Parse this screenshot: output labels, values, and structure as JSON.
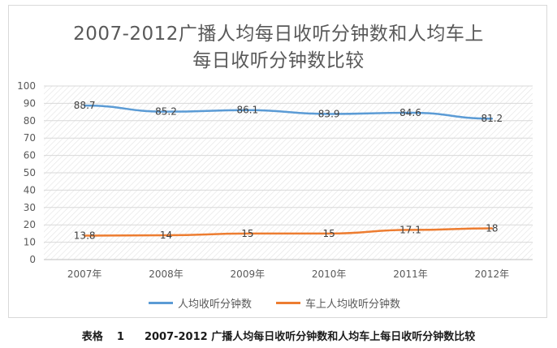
{
  "chart_data": {
    "type": "line",
    "title_line1": "2007-2012广播人均每日收听分钟数和人均车上",
    "title_line2": "每日收听分钟数比较",
    "categories": [
      "2007年",
      "2008年",
      "2009年",
      "2010年",
      "2011年",
      "2012年"
    ],
    "ylim": [
      0,
      100
    ],
    "yticks": [
      0,
      10,
      20,
      30,
      40,
      50,
      60,
      70,
      80,
      90,
      100
    ],
    "grid": true,
    "legend_position": "bottom",
    "series": [
      {
        "name": "人均收听分钟数",
        "values": [
          88.7,
          85.2,
          86.1,
          83.9,
          84.6,
          81.2
        ],
        "labels": [
          "88.7",
          "85.2",
          "86.1",
          "83.9",
          "84.6",
          "81.2"
        ],
        "color": "#5b9bd5"
      },
      {
        "name": "车上人均收听分钟数",
        "values": [
          13.8,
          14,
          15,
          15,
          17.1,
          18
        ],
        "labels": [
          "13.8",
          "14",
          "15",
          "15",
          "17.1",
          "18"
        ],
        "color": "#ed7d31"
      }
    ]
  },
  "caption": {
    "label": "表格",
    "number": "1",
    "text": "2007-2012 广播人均每日收听分钟数和人均车上每日收听分钟数比较"
  }
}
